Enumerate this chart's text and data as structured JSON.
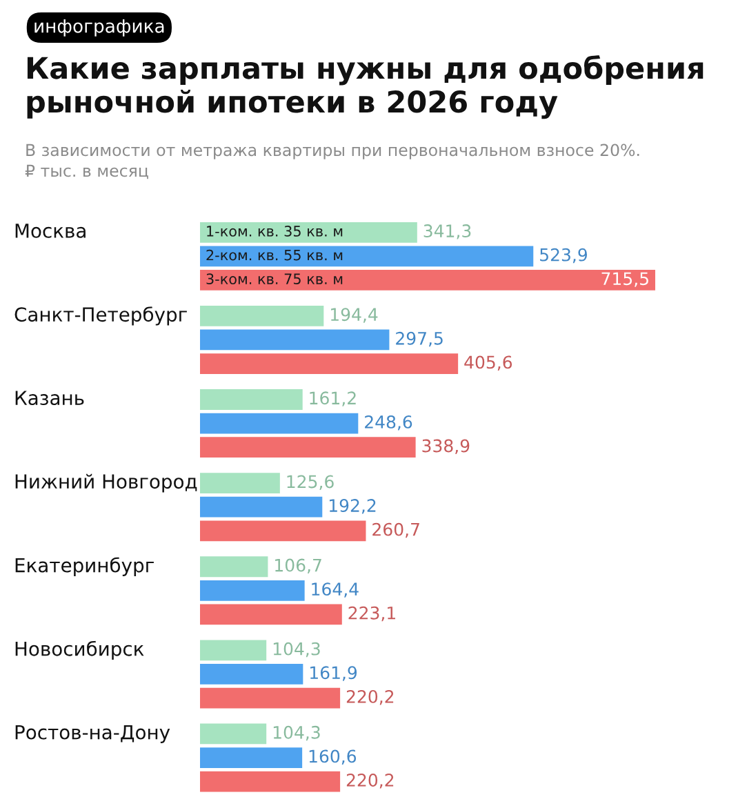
{
  "chart_data": {
    "type": "bar",
    "orientation": "horizontal",
    "title": "Какие зарплаты нужны для одобрения\nрыночной ипотеки в 2026 году",
    "subtitle": "В зависимости от метража квартиры при первоначальном взносе 20%.\n₽ тыс. в месяц",
    "annotations": [
      "инфографика"
    ],
    "categories": [
      "Москва",
      "Санкт-Петербург",
      "Казань",
      "Нижний Новгород",
      "Екатеринбург",
      "Новосибирск",
      "Ростов-на-Дону"
    ],
    "series": [
      {
        "name": "1-ком. кв. 35 кв. м",
        "color": "#a6e3c0",
        "values": [
          341.3,
          194.4,
          161.2,
          125.6,
          106.7,
          104.3,
          104.3
        ],
        "value_labels": [
          "341,3",
          "194,4",
          "161,2",
          "125,6",
          "106,7",
          "104,3",
          "104,3"
        ]
      },
      {
        "name": "2-ком. кв. 55 кв. м",
        "color": "#4fa3f0",
        "values": [
          523.9,
          297.5,
          248.6,
          192.2,
          164.4,
          161.9,
          160.6
        ],
        "value_labels": [
          "523,9",
          "297,5",
          "248,6",
          "192,2",
          "164,4",
          "161,9",
          "160,6"
        ]
      },
      {
        "name": "3-ком. кв. 75 кв. м",
        "color": "#f26d6d",
        "values": [
          715.5,
          405.6,
          338.9,
          260.7,
          223.1,
          220.2,
          220.2
        ],
        "value_labels": [
          "715,5",
          "405,6",
          "338,9",
          "260,7",
          "223,1",
          "220,2",
          "220,2"
        ]
      }
    ],
    "legend": false
  }
}
